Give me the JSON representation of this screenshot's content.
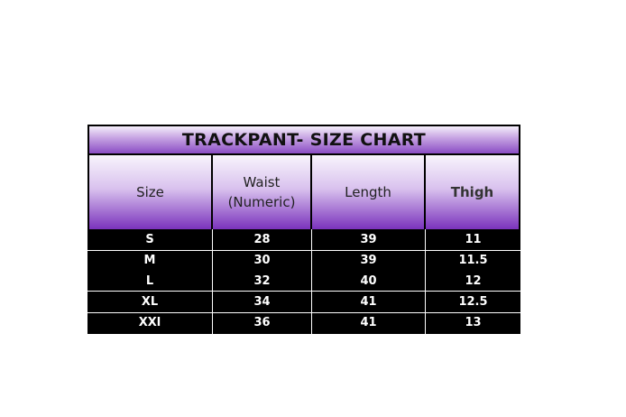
{
  "title": "TRACKPANT- SIZE CHART",
  "headers": [
    "Size",
    "Waist\n(Numeric)",
    "Length",
    "Thigh"
  ],
  "rows": [
    [
      "S",
      "28",
      "39",
      "11"
    ],
    [
      "M",
      "30",
      "39",
      "11.5"
    ],
    [
      "L",
      "32",
      "40",
      "12"
    ],
    [
      "XL",
      "34",
      "41",
      "12.5"
    ],
    [
      "XXl",
      "36",
      "41",
      "13"
    ]
  ],
  "colors": {
    "header_purple": "#7a32bc",
    "body": "#000000"
  }
}
